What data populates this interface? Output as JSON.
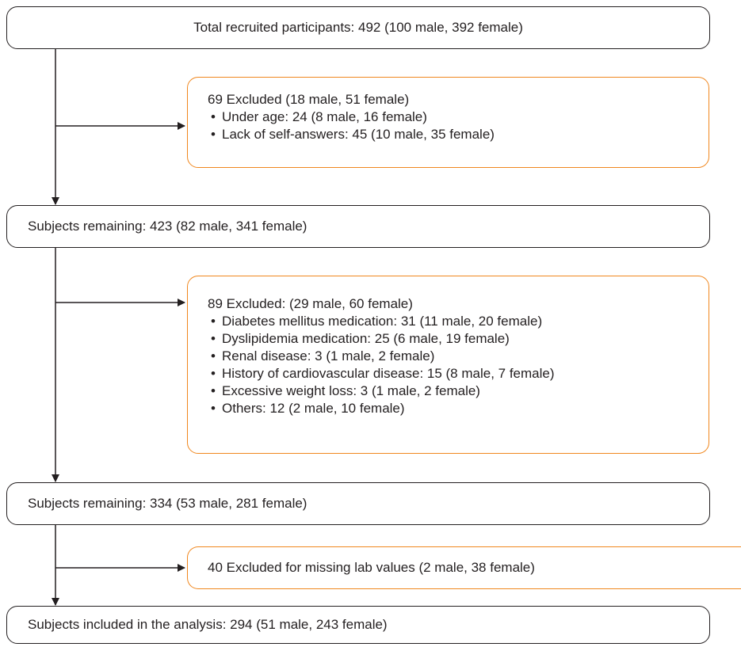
{
  "steps": {
    "total": "Total recruited participants: 492 (100 male, 392 female)",
    "remaining1": "Subjects remaining: 423 (82 male, 341 female)",
    "remaining2": "Subjects remaining: 334 (53 male, 281 female)",
    "included": "Subjects included in the analysis: 294 (51 male, 243 female)"
  },
  "exclusions": {
    "first": {
      "title": "69 Excluded (18 male, 51 female)",
      "items": [
        "Under age: 24 (8 male, 16 female)",
        "Lack of self-answers: 45 (10 male, 35 female)"
      ]
    },
    "second": {
      "title": "89 Excluded: (29 male, 60 female)",
      "items": [
        "Diabetes mellitus medication: 31 (11 male, 20 female)",
        "Dyslipidemia medication: 25 (6 male, 19 female)",
        "Renal disease: 3 (1 male, 2 female)",
        "History of cardiovascular disease: 15 (8 male, 7 female)",
        "Excessive weight loss: 3 (1 male, 2 female)",
        "Others: 12 (2 male, 10 female)"
      ]
    },
    "third": {
      "title": "40 Excluded for missing lab values (2 male, 38 female)"
    }
  },
  "colors": {
    "main_border": "#231f20",
    "exclusion_border": "#f0871e",
    "arrow": "#231f20"
  }
}
